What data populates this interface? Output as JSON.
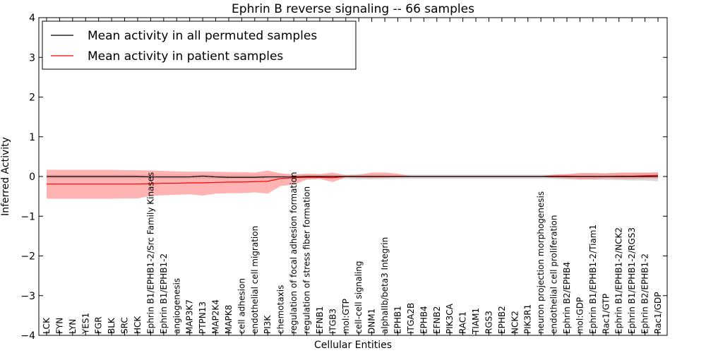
{
  "chart_data": {
    "type": "line",
    "title": "Ephrin B reverse signaling -- 66 samples",
    "xlabel": "Cellular Entities",
    "ylabel": "Inferred Activity",
    "ylim": [
      -4,
      4
    ],
    "yticks": [
      -4,
      -3,
      -2,
      -1,
      0,
      1,
      2,
      3,
      4
    ],
    "legend_position": "top-left",
    "colors": {
      "permuted_line": "#000000",
      "permuted_band": "#bbbbbb",
      "patient_line": "#ff0000",
      "patient_band": "#ff8080"
    },
    "categories": [
      "LCK",
      "FYN",
      "LYN",
      "YES1",
      "FGR",
      "BLK",
      "SRC",
      "HCK",
      "Ephrin B1/EPHB1-2/Src Family Kinases",
      "Ephrin B1/EPHB1-2",
      "angiogenesis",
      "MAP3K7",
      "PTPN13",
      "MAP2K4",
      "MAPK8",
      "cell adhesion",
      "endothelial cell migration",
      "PI3K",
      "chemotaxis",
      "regulation of focal adhesion formation",
      "regulation of stress fiber formation",
      "EFNB1",
      "ITGB3",
      "mol:GTP",
      "cell-cell signaling",
      "DNM1",
      "alphaIIb/beta3 Integrin",
      "EPHB1",
      "ITGA2B",
      "EPHB4",
      "EFNB2",
      "PIK3CA",
      "RAC1",
      "TIAM1",
      "RGS3",
      "EPHB2",
      "NCK2",
      "PIK3R1",
      "neuron projection morphogenesis",
      "endothelial cell proliferation",
      "Ephrin B2/EPHB4",
      "mol:GDP",
      "Ephrin B1/EPHB1-2/Tiam1",
      "Rac1/GTP",
      "Ephrin B1/EPHB1-2/NCK2",
      "Ephrin B1/EPHB1-2/RGS3",
      "Ephrin B2/EPHB1-2",
      "Rac1/GDP"
    ],
    "series": [
      {
        "name": "Mean activity in all permuted samples",
        "values": [
          0,
          0,
          0,
          0,
          0,
          0,
          0,
          0,
          -0.01,
          -0.01,
          -0.01,
          -0.01,
          0.01,
          -0.01,
          -0.02,
          -0.02,
          -0.02,
          -0.01,
          -0.01,
          -0.01,
          0,
          0,
          0,
          0,
          0,
          0,
          0,
          0,
          0,
          0,
          0,
          0,
          0,
          0,
          0,
          0,
          0,
          0,
          0,
          0,
          0,
          0,
          0,
          0,
          0,
          0,
          0,
          0
        ],
        "band_lower": [
          -0.06,
          -0.06,
          -0.06,
          -0.06,
          -0.06,
          -0.06,
          -0.06,
          -0.06,
          -0.06,
          -0.06,
          -0.06,
          -0.06,
          -0.06,
          -0.06,
          -0.06,
          -0.06,
          -0.06,
          -0.06,
          -0.06,
          -0.06,
          -0.06,
          -0.06,
          -0.06,
          -0.06,
          -0.07,
          -0.07,
          -0.07,
          -0.06,
          -0.06,
          -0.06,
          -0.06,
          -0.06,
          -0.06,
          -0.06,
          -0.06,
          -0.06,
          -0.06,
          -0.06,
          -0.06,
          -0.06,
          -0.07,
          -0.08,
          -0.08,
          -0.09,
          -0.09,
          -0.1,
          -0.1,
          -0.12
        ],
        "band_upper": [
          0.05,
          0.05,
          0.05,
          0.05,
          0.05,
          0.05,
          0.05,
          0.05,
          0.05,
          0.05,
          0.05,
          0.05,
          0.05,
          0.05,
          0.05,
          0.05,
          0.05,
          0.05,
          0.05,
          0.05,
          0.05,
          0.05,
          0.05,
          0.05,
          0.06,
          0.06,
          0.06,
          0.05,
          0.05,
          0.05,
          0.05,
          0.05,
          0.05,
          0.05,
          0.05,
          0.05,
          0.05,
          0.05,
          0.05,
          0.05,
          0.06,
          0.07,
          0.07,
          0.08,
          0.08,
          0.09,
          0.09,
          0.11
        ]
      },
      {
        "name": "Mean activity in patient samples",
        "values": [
          -0.19,
          -0.19,
          -0.19,
          -0.19,
          -0.19,
          -0.19,
          -0.19,
          -0.19,
          -0.18,
          -0.17,
          -0.17,
          -0.16,
          -0.16,
          -0.15,
          -0.14,
          -0.14,
          -0.13,
          -0.12,
          -0.05,
          -0.03,
          -0.02,
          -0.02,
          -0.03,
          0,
          0,
          0,
          0,
          0,
          0,
          0,
          0,
          0,
          0,
          0,
          0,
          0,
          0,
          0,
          0,
          0.01,
          0.01,
          0,
          0,
          0,
          0.01,
          0.01,
          0.02,
          0.03
        ],
        "band_lower": [
          -0.56,
          -0.56,
          -0.56,
          -0.56,
          -0.56,
          -0.56,
          -0.55,
          -0.55,
          -0.49,
          -0.47,
          -0.46,
          -0.45,
          -0.48,
          -0.43,
          -0.42,
          -0.42,
          -0.4,
          -0.43,
          -0.24,
          -0.2,
          -0.08,
          -0.06,
          -0.14,
          -0.02,
          -0.03,
          -0.04,
          -0.03,
          -0.02,
          -0.01,
          -0.01,
          -0.01,
          -0.01,
          -0.01,
          -0.01,
          -0.01,
          -0.01,
          -0.01,
          -0.01,
          -0.01,
          -0.04,
          -0.05,
          -0.07,
          -0.07,
          -0.05,
          -0.06,
          -0.06,
          -0.05,
          -0.05
        ],
        "band_upper": [
          0.17,
          0.17,
          0.17,
          0.17,
          0.17,
          0.17,
          0.16,
          0.16,
          0.15,
          0.14,
          0.13,
          0.12,
          0.12,
          0.12,
          0.11,
          0.11,
          0.1,
          0.15,
          0.08,
          0.05,
          0.07,
          0.06,
          0.1,
          0.03,
          0.04,
          0.1,
          0.1,
          0.07,
          0.01,
          0.01,
          0.01,
          0.01,
          0.01,
          0.01,
          0.01,
          0.01,
          0.01,
          0.01,
          0.01,
          0.05,
          0.06,
          0.09,
          0.09,
          0.08,
          0.1,
          0.1,
          0.1,
          0.1
        ]
      }
    ]
  }
}
